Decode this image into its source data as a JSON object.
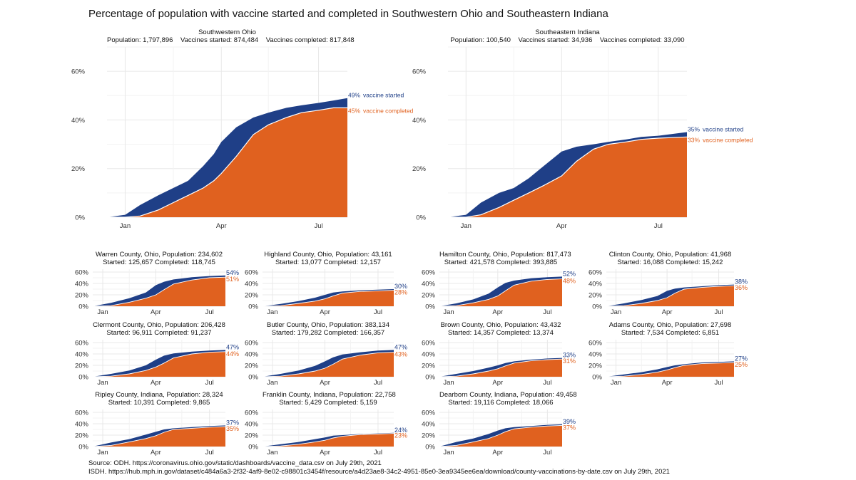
{
  "title": "Percentage of population with vaccine started and completed in Southwestern Ohio and Southeastern Indiana",
  "colors": {
    "started": "#1f3f87",
    "completed": "#e0611f",
    "grid": "#e8e8e8",
    "line": "#ffffff"
  },
  "source_lines": [
    "Source: ODH. https://coronavirus.ohio.gov/static/dashboards/vaccine_data.csv on July 29th, 2021",
    "ISDH. https://hub.mph.in.gov/dataset/c484a6a3-2f32-4af9-8e02-c98801c3454f/resource/a4d23ae8-34c2-4951-85e0-3ea9345ee6ea/download/county-vaccinations-by-date.csv on July 29th, 2021"
  ],
  "x_ticks": [
    "Jan",
    "Apr",
    "Jul"
  ],
  "x_range": [
    "2020-12-15",
    "2021-07-28"
  ],
  "chart_data": [
    {
      "id": "swohio",
      "type": "area",
      "size": "large",
      "title": "Southwestern Ohio",
      "subtitle": "Population: 1,797,896    Vaccines started: 874,484    Vaccines completed: 817,848",
      "ylim": [
        0,
        0.7
      ],
      "y_ticks": [
        "0%",
        "20%",
        "40%",
        "60%"
      ],
      "y_tick_values": [
        0,
        0.2,
        0.4,
        0.6
      ],
      "x": [
        "2020-12-15",
        "2021-01-01",
        "2021-01-15",
        "2021-02-01",
        "2021-02-15",
        "2021-03-01",
        "2021-03-15",
        "2021-03-25",
        "2021-04-01",
        "2021-04-15",
        "2021-05-01",
        "2021-05-15",
        "2021-06-01",
        "2021-06-15",
        "2021-07-01",
        "2021-07-15",
        "2021-07-28"
      ],
      "started": [
        0,
        0.01,
        0.05,
        0.09,
        0.12,
        0.15,
        0.21,
        0.26,
        0.31,
        0.37,
        0.41,
        0.43,
        0.45,
        0.46,
        0.47,
        0.48,
        0.49
      ],
      "completed": [
        0,
        0,
        0.005,
        0.03,
        0.06,
        0.09,
        0.12,
        0.15,
        0.18,
        0.25,
        0.34,
        0.38,
        0.41,
        0.43,
        0.44,
        0.45,
        0.45
      ],
      "label_started": "49%",
      "label_completed": "45%",
      "legend_started": "vaccine started",
      "legend_completed": "vaccine completed"
    },
    {
      "id": "seindiana",
      "type": "area",
      "size": "large",
      "title": "Southeastern Indiana",
      "subtitle": "Population: 100,540    Vaccines started: 34,936    Vaccines completed: 33,090",
      "ylim": [
        0,
        0.7
      ],
      "y_ticks": [
        "0%",
        "20%",
        "40%",
        "60%"
      ],
      "y_tick_values": [
        0,
        0.2,
        0.4,
        0.6
      ],
      "x": [
        "2020-12-15",
        "2021-01-01",
        "2021-01-15",
        "2021-02-01",
        "2021-02-15",
        "2021-03-01",
        "2021-03-15",
        "2021-04-01",
        "2021-04-15",
        "2021-05-01",
        "2021-05-15",
        "2021-06-01",
        "2021-06-15",
        "2021-07-01",
        "2021-07-28"
      ],
      "started": [
        0,
        0.01,
        0.06,
        0.1,
        0.12,
        0.16,
        0.21,
        0.27,
        0.29,
        0.3,
        0.31,
        0.32,
        0.33,
        0.335,
        0.35
      ],
      "completed": [
        0,
        0,
        0.01,
        0.04,
        0.07,
        0.1,
        0.13,
        0.17,
        0.23,
        0.28,
        0.3,
        0.31,
        0.32,
        0.325,
        0.33
      ],
      "label_started": "35%",
      "label_completed": "33%",
      "legend_started": "vaccine started",
      "legend_completed": "vaccine completed"
    },
    {
      "id": "warren",
      "type": "area",
      "size": "small",
      "title": "Warren County, Ohio, Population: 234,602",
      "subtitle": "Started: 125,657 Completed: 118,745",
      "ylim": [
        0,
        0.65
      ],
      "y_ticks": [
        "0%",
        "20%",
        "40%",
        "60%"
      ],
      "y_tick_values": [
        0,
        0.2,
        0.4,
        0.6
      ],
      "x": [
        "2020-12-15",
        "2021-01-15",
        "2021-02-15",
        "2021-03-15",
        "2021-04-01",
        "2021-04-15",
        "2021-05-01",
        "2021-06-01",
        "2021-07-01",
        "2021-07-28"
      ],
      "started": [
        0,
        0.06,
        0.14,
        0.24,
        0.37,
        0.43,
        0.47,
        0.51,
        0.53,
        0.54
      ],
      "completed": [
        0,
        0.01,
        0.07,
        0.14,
        0.2,
        0.29,
        0.39,
        0.46,
        0.5,
        0.51
      ],
      "label_started": "54%",
      "label_completed": "51%"
    },
    {
      "id": "highland",
      "type": "area",
      "size": "small",
      "title": "Highland County, Ohio, Population: 43,161",
      "subtitle": "Started: 13,077 Completed: 12,157",
      "ylim": [
        0,
        0.65
      ],
      "y_ticks": [
        "0%",
        "20%",
        "40%",
        "60%"
      ],
      "y_tick_values": [
        0,
        0.2,
        0.4,
        0.6
      ],
      "x": [
        "2020-12-15",
        "2021-01-15",
        "2021-02-15",
        "2021-03-15",
        "2021-04-01",
        "2021-04-15",
        "2021-05-01",
        "2021-06-01",
        "2021-07-01",
        "2021-07-28"
      ],
      "started": [
        0,
        0.04,
        0.09,
        0.15,
        0.2,
        0.24,
        0.26,
        0.28,
        0.29,
        0.3
      ],
      "completed": [
        0,
        0.01,
        0.05,
        0.09,
        0.13,
        0.18,
        0.23,
        0.26,
        0.27,
        0.28
      ],
      "label_started": "30%",
      "label_completed": "28%"
    },
    {
      "id": "hamilton",
      "type": "area",
      "size": "small",
      "title": "Hamilton County, Ohio, Population: 817,473",
      "subtitle": "Started: 421,578 Completed: 393,885",
      "ylim": [
        0,
        0.65
      ],
      "y_ticks": [
        "0%",
        "20%",
        "40%",
        "60%"
      ],
      "y_tick_values": [
        0,
        0.2,
        0.4,
        0.6
      ],
      "x": [
        "2020-12-15",
        "2021-01-15",
        "2021-02-15",
        "2021-03-15",
        "2021-04-01",
        "2021-04-15",
        "2021-05-01",
        "2021-06-01",
        "2021-07-01",
        "2021-07-28"
      ],
      "started": [
        0,
        0.05,
        0.12,
        0.22,
        0.33,
        0.41,
        0.45,
        0.49,
        0.51,
        0.52
      ],
      "completed": [
        0,
        0.01,
        0.06,
        0.12,
        0.18,
        0.27,
        0.37,
        0.44,
        0.47,
        0.48
      ],
      "label_started": "52%",
      "label_completed": "48%"
    },
    {
      "id": "clinton",
      "type": "area",
      "size": "small",
      "title": "Clinton County, Ohio, Population: 41,968",
      "subtitle": "Started: 16,088 Completed: 15,242",
      "ylim": [
        0,
        0.65
      ],
      "y_ticks": [
        "0%",
        "20%",
        "40%",
        "60%"
      ],
      "y_tick_values": [
        0,
        0.2,
        0.4,
        0.6
      ],
      "x": [
        "2020-12-15",
        "2021-01-15",
        "2021-02-15",
        "2021-03-15",
        "2021-04-01",
        "2021-04-15",
        "2021-05-01",
        "2021-06-01",
        "2021-07-01",
        "2021-07-28"
      ],
      "started": [
        0,
        0.05,
        0.11,
        0.18,
        0.27,
        0.31,
        0.33,
        0.35,
        0.37,
        0.38
      ],
      "completed": [
        0,
        0.01,
        0.05,
        0.1,
        0.15,
        0.23,
        0.3,
        0.33,
        0.35,
        0.36
      ],
      "label_started": "38%",
      "label_completed": "36%"
    },
    {
      "id": "clermont",
      "type": "area",
      "size": "small",
      "title": "Clermont County, Ohio, Population: 206,428",
      "subtitle": "Started: 96,911 Completed: 91,237",
      "ylim": [
        0,
        0.65
      ],
      "y_ticks": [
        "0%",
        "20%",
        "40%",
        "60%"
      ],
      "y_tick_values": [
        0,
        0.2,
        0.4,
        0.6
      ],
      "x": [
        "2020-12-15",
        "2021-01-15",
        "2021-02-15",
        "2021-03-15",
        "2021-04-01",
        "2021-04-15",
        "2021-05-01",
        "2021-06-01",
        "2021-07-01",
        "2021-07-28"
      ],
      "started": [
        0,
        0.05,
        0.11,
        0.2,
        0.3,
        0.37,
        0.41,
        0.44,
        0.46,
        0.47
      ],
      "completed": [
        0,
        0.01,
        0.05,
        0.11,
        0.17,
        0.24,
        0.33,
        0.4,
        0.43,
        0.44
      ],
      "label_started": "47%",
      "label_completed": "44%"
    },
    {
      "id": "butler",
      "type": "area",
      "size": "small",
      "title": "Butler County, Ohio, Population: 383,134",
      "subtitle": "Started: 179,282 Completed: 166,357",
      "ylim": [
        0,
        0.65
      ],
      "y_ticks": [
        "0%",
        "20%",
        "40%",
        "60%"
      ],
      "y_tick_values": [
        0,
        0.2,
        0.4,
        0.6
      ],
      "x": [
        "2020-12-15",
        "2021-01-15",
        "2021-02-15",
        "2021-03-15",
        "2021-04-01",
        "2021-04-15",
        "2021-05-01",
        "2021-06-01",
        "2021-07-01",
        "2021-07-28"
      ],
      "started": [
        0,
        0.05,
        0.11,
        0.19,
        0.27,
        0.34,
        0.39,
        0.43,
        0.46,
        0.47
      ],
      "completed": [
        0,
        0.01,
        0.05,
        0.1,
        0.15,
        0.22,
        0.31,
        0.38,
        0.42,
        0.43
      ],
      "label_started": "47%",
      "label_completed": "43%"
    },
    {
      "id": "brown",
      "type": "area",
      "size": "small",
      "title": "Brown County, Ohio, Population: 43,432",
      "subtitle": "Started: 14,357 Completed: 13,374",
      "ylim": [
        0,
        0.65
      ],
      "y_ticks": [
        "0%",
        "20%",
        "40%",
        "60%"
      ],
      "y_tick_values": [
        0,
        0.2,
        0.4,
        0.6
      ],
      "x": [
        "2020-12-15",
        "2021-01-15",
        "2021-02-15",
        "2021-03-15",
        "2021-04-01",
        "2021-04-15",
        "2021-05-01",
        "2021-06-01",
        "2021-07-01",
        "2021-07-28"
      ],
      "started": [
        0,
        0.05,
        0.1,
        0.16,
        0.2,
        0.24,
        0.27,
        0.3,
        0.32,
        0.33
      ],
      "completed": [
        0,
        0.01,
        0.05,
        0.1,
        0.14,
        0.19,
        0.24,
        0.28,
        0.3,
        0.31
      ],
      "label_started": "33%",
      "label_completed": "31%"
    },
    {
      "id": "adams",
      "type": "area",
      "size": "small",
      "title": "Adams County, Ohio, Population: 27,698",
      "subtitle": "Started: 7,534 Completed: 6,851",
      "ylim": [
        0,
        0.65
      ],
      "y_ticks": [
        "0%",
        "20%",
        "40%",
        "60%"
      ],
      "y_tick_values": [
        0,
        0.2,
        0.4,
        0.6
      ],
      "x": [
        "2020-12-15",
        "2021-01-15",
        "2021-02-15",
        "2021-03-15",
        "2021-04-01",
        "2021-04-15",
        "2021-05-01",
        "2021-06-01",
        "2021-07-01",
        "2021-07-28"
      ],
      "started": [
        0,
        0.04,
        0.08,
        0.13,
        0.17,
        0.2,
        0.22,
        0.25,
        0.26,
        0.27
      ],
      "completed": [
        0,
        0.01,
        0.04,
        0.08,
        0.12,
        0.16,
        0.2,
        0.23,
        0.24,
        0.25
      ],
      "label_started": "27%",
      "label_completed": "25%"
    },
    {
      "id": "ripley",
      "type": "area",
      "size": "small",
      "title": "Ripley County, Indiana, Population: 28,324",
      "subtitle": "Started: 10,391 Completed: 9,865",
      "ylim": [
        0,
        0.65
      ],
      "y_ticks": [
        "0%",
        "20%",
        "40%",
        "60%"
      ],
      "y_tick_values": [
        0,
        0.2,
        0.4,
        0.6
      ],
      "x": [
        "2020-12-15",
        "2021-01-15",
        "2021-02-15",
        "2021-03-15",
        "2021-04-01",
        "2021-04-15",
        "2021-05-01",
        "2021-06-01",
        "2021-07-01",
        "2021-07-28"
      ],
      "started": [
        0,
        0.07,
        0.13,
        0.21,
        0.26,
        0.3,
        0.32,
        0.34,
        0.36,
        0.37
      ],
      "completed": [
        0,
        0.02,
        0.08,
        0.14,
        0.19,
        0.25,
        0.3,
        0.32,
        0.34,
        0.35
      ],
      "label_started": "37%",
      "label_completed": "35%"
    },
    {
      "id": "franklin",
      "type": "area",
      "size": "small",
      "title": "Franklin County, Indiana, Population: 22,758",
      "subtitle": "Started: 5,429 Completed: 5,159",
      "ylim": [
        0,
        0.65
      ],
      "y_ticks": [
        "0%",
        "20%",
        "40%",
        "60%"
      ],
      "y_tick_values": [
        0,
        0.2,
        0.4,
        0.6
      ],
      "x": [
        "2020-12-15",
        "2021-01-15",
        "2021-02-15",
        "2021-03-15",
        "2021-04-01",
        "2021-04-15",
        "2021-05-01",
        "2021-06-01",
        "2021-07-01",
        "2021-07-28"
      ],
      "started": [
        0,
        0.04,
        0.08,
        0.13,
        0.16,
        0.19,
        0.2,
        0.22,
        0.23,
        0.24
      ],
      "completed": [
        0,
        0.01,
        0.04,
        0.08,
        0.11,
        0.15,
        0.18,
        0.21,
        0.22,
        0.23
      ],
      "label_started": "24%",
      "label_completed": "23%"
    },
    {
      "id": "dearborn",
      "type": "area",
      "size": "small",
      "title": "Dearborn County, Indiana, Population: 49,458",
      "subtitle": "Started: 19,116 Completed: 18,066",
      "ylim": [
        0,
        0.65
      ],
      "y_ticks": [
        "0%",
        "20%",
        "40%",
        "60%"
      ],
      "y_tick_values": [
        0,
        0.2,
        0.4,
        0.6
      ],
      "x": [
        "2020-12-15",
        "2021-01-15",
        "2021-02-15",
        "2021-03-15",
        "2021-04-01",
        "2021-04-15",
        "2021-05-01",
        "2021-06-01",
        "2021-07-01",
        "2021-07-28"
      ],
      "started": [
        0,
        0.08,
        0.14,
        0.22,
        0.28,
        0.32,
        0.34,
        0.36,
        0.38,
        0.39
      ],
      "completed": [
        0,
        0.02,
        0.08,
        0.14,
        0.2,
        0.26,
        0.31,
        0.34,
        0.36,
        0.37
      ],
      "label_started": "39%",
      "label_completed": "37%"
    }
  ]
}
